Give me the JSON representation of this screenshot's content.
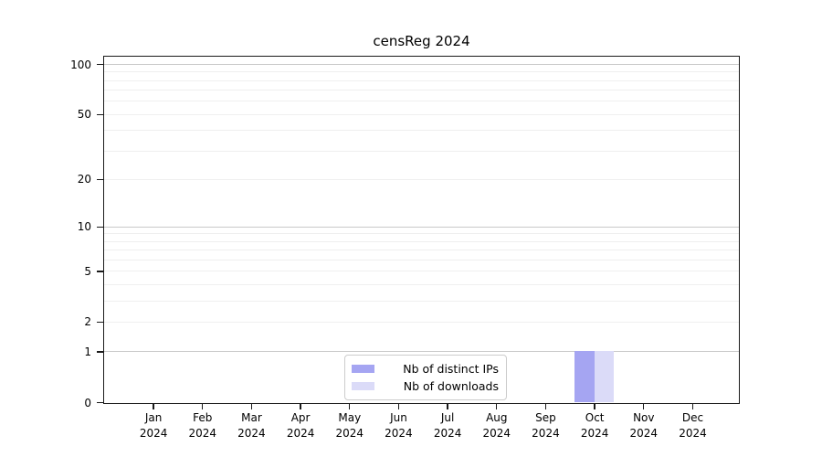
{
  "title": "censReg 2024",
  "chart_data": {
    "type": "bar",
    "title": "censReg 2024",
    "categories": [
      "Jan",
      "Feb",
      "Mar",
      "Apr",
      "May",
      "Jun",
      "Jul",
      "Aug",
      "Sep",
      "Oct",
      "Nov",
      "Dec"
    ],
    "category_year": "2024",
    "series": [
      {
        "name": "Nb of distinct IPs",
        "color": "#a5a5f2",
        "values": [
          0,
          0,
          0,
          0,
          0,
          0,
          0,
          0,
          0,
          1,
          0,
          0
        ]
      },
      {
        "name": "Nb of downloads",
        "color": "#dbdbf8",
        "values": [
          0,
          0,
          0,
          0,
          0,
          0,
          0,
          0,
          0,
          1,
          0,
          0
        ]
      }
    ],
    "y_axis": {
      "scale": "log1p",
      "tick_values": [
        0,
        1,
        2,
        5,
        10,
        20,
        50,
        100
      ],
      "tick_labels": [
        "0",
        "1",
        "2",
        "5",
        "10",
        "20",
        "50",
        "100"
      ],
      "major_gridlines": [
        1,
        10,
        100
      ],
      "minor_gridlines": [
        2,
        3,
        4,
        5,
        6,
        7,
        8,
        9,
        20,
        30,
        40,
        50,
        60,
        70,
        80,
        90
      ],
      "range_top": 112
    },
    "legend": {
      "position": "bottom-center",
      "entries": [
        "Nb of distinct IPs",
        "Nb of downloads"
      ]
    },
    "style_colors": {
      "axis": "#1a1a1a",
      "major_grid": "#c9c9c9",
      "minor_grid": "#efefef",
      "background": "#ffffff"
    },
    "grid": "horizontal-only"
  }
}
